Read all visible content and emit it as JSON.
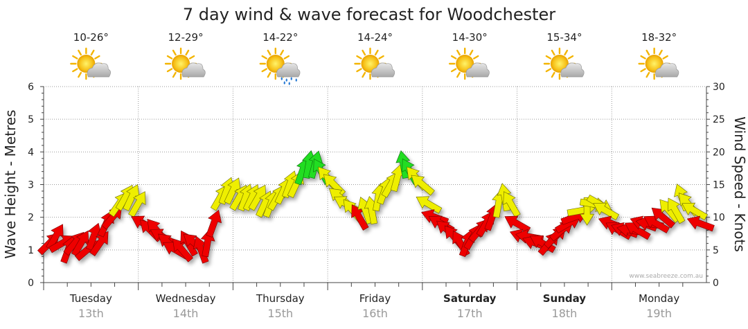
{
  "chart_data": {
    "type": "line",
    "title": "7 day wind & wave forecast for Woodchester",
    "ylabel_left": "Wave Height - Metres",
    "ylabel_right": "Wind Speed - Knots",
    "y_left_lim": [
      0,
      6
    ],
    "y_left_ticks": [
      "0",
      "1",
      "2",
      "3",
      "4",
      "5",
      "6"
    ],
    "y_right_lim": [
      0,
      30
    ],
    "y_right_ticks": [
      "0",
      "5",
      "10",
      "15",
      "20",
      "25",
      "30"
    ],
    "days": [
      {
        "name": "Tuesday",
        "date": "13th",
        "temp": "10-26°",
        "weather": "sun-cloud-icon",
        "weekend": false
      },
      {
        "name": "Wednesday",
        "date": "14th",
        "temp": "12-29°",
        "weather": "sun-cloud-icon",
        "weekend": false
      },
      {
        "name": "Thursday",
        "date": "15th",
        "temp": "14-22°",
        "weather": "sun-cloud-rain-icon",
        "weekend": false
      },
      {
        "name": "Friday",
        "date": "16th",
        "temp": "14-24°",
        "weather": "sun-cloud-icon",
        "weekend": false
      },
      {
        "name": "Saturday",
        "date": "17th",
        "temp": "14-30°",
        "weather": "sun-cloud-icon",
        "weekend": true
      },
      {
        "name": "Sunday",
        "date": "18th",
        "temp": "15-34°",
        "weather": "sun-cloud-icon",
        "weekend": true
      },
      {
        "name": "Monday",
        "date": "19th",
        "temp": "18-32°",
        "weather": "sun-cloud-icon",
        "weekend": false
      }
    ],
    "wind_color_bands": [
      {
        "max_knots": 10.5,
        "color": "#ee0000"
      },
      {
        "max_knots": 16.5,
        "color": "#eeee00"
      },
      {
        "max_knots": 30,
        "color": "#22dd22"
      }
    ],
    "wind_knots": [
      6,
      7,
      6,
      5,
      6,
      6,
      5,
      7,
      6,
      9,
      10,
      12,
      13,
      13,
      12,
      9,
      8,
      8,
      7,
      6,
      5,
      5,
      6,
      6,
      5,
      6,
      9,
      13,
      14,
      14,
      13,
      13,
      13,
      13,
      12,
      12,
      13,
      14,
      15,
      15,
      17,
      18,
      18,
      17,
      16,
      15,
      13,
      12,
      11,
      10,
      11,
      11,
      13,
      14,
      15,
      16,
      18,
      17,
      16,
      15,
      12,
      10,
      9,
      8,
      7,
      6,
      6,
      7,
      8,
      9,
      10,
      12,
      13,
      12,
      9,
      7,
      7,
      6,
      6,
      6,
      7,
      8,
      9,
      10,
      11,
      11,
      12,
      12,
      11,
      9,
      8,
      8,
      8,
      8,
      9,
      9,
      9,
      10,
      11,
      11,
      13,
      12,
      11,
      9
    ],
    "wind_dir_deg": [
      45,
      30,
      60,
      20,
      40,
      30,
      50,
      20,
      35,
      25,
      40,
      35,
      30,
      25,
      30,
      300,
      315,
      320,
      300,
      310,
      300,
      320,
      330,
      310,
      340,
      10,
      20,
      30,
      20,
      25,
      30,
      20,
      25,
      30,
      25,
      20,
      30,
      25,
      20,
      25,
      20,
      10,
      15,
      330,
      320,
      315,
      310,
      300,
      320,
      330,
      340,
      350,
      10,
      20,
      30,
      15,
      350,
      330,
      320,
      310,
      300,
      290,
      300,
      310,
      320,
      330,
      20,
      30,
      40,
      30,
      20,
      10,
      350,
      330,
      300,
      290,
      280,
      290,
      300,
      40,
      45,
      50,
      60,
      70,
      80,
      180,
      100,
      120,
      300,
      290,
      300,
      290,
      280,
      300,
      290,
      280,
      300,
      310,
      320,
      330,
      340,
      320,
      300,
      290
    ],
    "x_axis_label_weekend_bold": true,
    "watermark": "www.seabreeze.com.au"
  }
}
